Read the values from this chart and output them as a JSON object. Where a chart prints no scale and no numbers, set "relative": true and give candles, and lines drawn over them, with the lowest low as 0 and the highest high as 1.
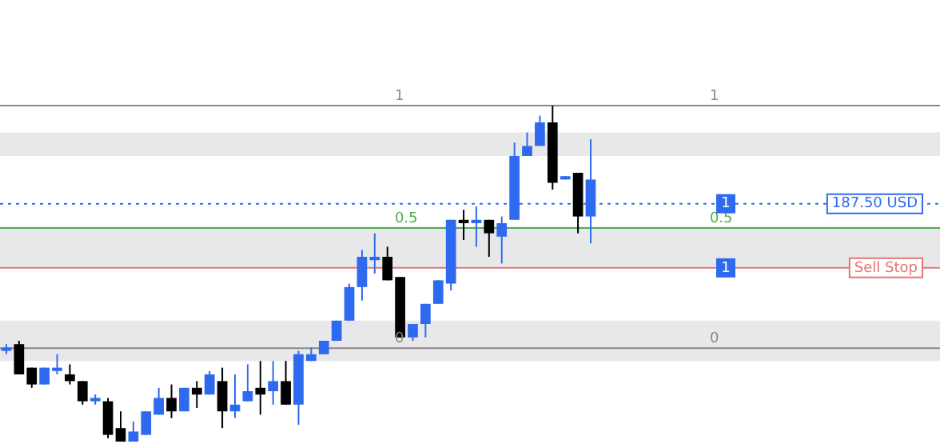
{
  "chart_data": {
    "type": "candlestick",
    "relative": true,
    "categories": [
      null,
      null,
      null,
      null,
      null,
      null,
      null,
      null,
      null,
      null,
      null,
      null,
      null,
      null,
      null,
      null,
      null,
      null,
      null,
      null,
      null,
      null,
      null,
      null,
      null,
      null,
      null,
      null,
      null,
      null,
      null,
      null,
      null,
      null,
      null,
      null,
      null,
      null,
      null,
      null,
      null,
      null,
      null,
      null,
      null,
      null,
      null,
      null,
      null,
      null,
      null,
      null,
      null,
      null,
      null,
      null,
      null,
      null,
      null,
      null,
      null,
      null,
      null,
      null,
      null,
      null,
      null,
      null,
      null,
      null,
      null,
      null,
      null,
      null
    ],
    "ohlc": [
      [
        0.27,
        0.29,
        0.26,
        0.28
      ],
      [
        0.29,
        0.3,
        0.2,
        0.2
      ],
      [
        0.22,
        0.22,
        0.16,
        0.17
      ],
      [
        0.17,
        0.22,
        0.17,
        0.22
      ],
      [
        0.21,
        0.26,
        0.2,
        0.22
      ],
      [
        0.2,
        0.23,
        0.17,
        0.18
      ],
      [
        0.18,
        0.18,
        0.11,
        0.12
      ],
      [
        0.12,
        0.14,
        0.11,
        0.13
      ],
      [
        0.12,
        0.13,
        0.01,
        0.02
      ],
      [
        0.04,
        0.09,
        0,
        0
      ],
      [
        0,
        0.06,
        0,
        0.03
      ],
      [
        0.02,
        0.09,
        0.02,
        0.09
      ],
      [
        0.08,
        0.16,
        0.08,
        0.13
      ],
      [
        0.13,
        0.17,
        0.07,
        0.09
      ],
      [
        0.09,
        0.16,
        0.09,
        0.16
      ],
      [
        0.16,
        0.18,
        0.1,
        0.14
      ],
      [
        0.14,
        0.21,
        0.14,
        0.2
      ],
      [
        0.18,
        0.22,
        0.04,
        0.09
      ],
      [
        0.09,
        0.2,
        0.07,
        0.11
      ],
      [
        0.12,
        0.23,
        0.12,
        0.15
      ],
      [
        0.16,
        0.24,
        0.08,
        0.14
      ],
      [
        0.15,
        0.24,
        0.11,
        0.18
      ],
      [
        0.18,
        0.24,
        0.11,
        0.11
      ],
      [
        0.11,
        0.27,
        0.05,
        0.26
      ],
      [
        0.24,
        0.28,
        0.24,
        0.26
      ],
      [
        0.26,
        0.3,
        0.26,
        0.3
      ],
      [
        0.3,
        0.36,
        0.3,
        0.36
      ],
      [
        0.36,
        0.47,
        0.36,
        0.46
      ],
      [
        0.46,
        0.57,
        0.42,
        0.55
      ],
      [
        0.54,
        0.62,
        0.5,
        0.55
      ],
      [
        0.55,
        0.58,
        0.48,
        0.48
      ],
      [
        0.49,
        0.49,
        0.31,
        0.31
      ],
      [
        0.31,
        0.35,
        0.3,
        0.35
      ],
      [
        0.35,
        0.41,
        0.31,
        0.41
      ],
      [
        0.41,
        0.48,
        0.41,
        0.48
      ],
      [
        0.47,
        0.66,
        0.45,
        0.66
      ],
      [
        0.66,
        0.69,
        0.6,
        0.65
      ],
      [
        0.65,
        0.7,
        0.58,
        0.66
      ],
      [
        0.66,
        0.66,
        0.55,
        0.62
      ],
      [
        0.61,
        0.67,
        0.53,
        0.65
      ],
      [
        0.66,
        0.89,
        0.66,
        0.85
      ],
      [
        0.85,
        0.92,
        0.85,
        0.88
      ],
      [
        0.88,
        0.97,
        0.88,
        0.95
      ],
      [
        0.95,
        1,
        0.75,
        0.77
      ],
      [
        0.78,
        0.79,
        0.78,
        0.79
      ],
      [
        0.8,
        0.8,
        0.62,
        0.67
      ],
      [
        0.67,
        0.9,
        0.59,
        0.78
      ],
      null,
      null,
      null,
      null,
      null,
      null,
      null,
      null,
      null,
      null,
      null,
      null,
      null,
      null,
      null,
      null,
      null,
      null,
      null,
      null,
      null,
      null,
      null,
      null,
      null,
      null,
      null
    ],
    "colors": [
      "#2e6af0",
      "#000000",
      "#000000",
      "#2e6af0",
      "#2e6af0",
      "#000000",
      "#000000",
      "#2e6af0",
      "#000000",
      "#000000",
      "#2e6af0",
      "#2e6af0",
      "#2e6af0",
      "#000000",
      "#2e6af0",
      "#000000",
      "#2e6af0",
      "#000000",
      "#2e6af0",
      "#2e6af0",
      "#000000",
      "#2e6af0",
      "#000000",
      "#2e6af0",
      "#2e6af0",
      "#2e6af0",
      "#2e6af0",
      "#2e6af0",
      "#2e6af0",
      "#2e6af0",
      "#000000",
      "#000000",
      "#2e6af0",
      "#2e6af0",
      "#2e6af0",
      "#2e6af0",
      "#000000",
      "#2e6af0",
      "#000000",
      "#2e6af0",
      "#2e6af0",
      "#2e6af0",
      "#2e6af0",
      "#000000",
      "#2e6af0",
      "#000000",
      "#2e6af0",
      null,
      null,
      null,
      null,
      null,
      null,
      null,
      null,
      null,
      null,
      null,
      null,
      null,
      null,
      null,
      null,
      null,
      null,
      null,
      null,
      null,
      null,
      null,
      null,
      null,
      null,
      null
    ],
    "bands": [
      {
        "axis": "y",
        "from": 0.24,
        "to": 0.36,
        "color": "#e8e8ea"
      },
      {
        "axis": "y",
        "from": 0.52,
        "to": 0.64,
        "color": "#e8e8ea"
      },
      {
        "axis": "y",
        "from": 0.85,
        "to": 0.92,
        "color": "#e8e8ea"
      }
    ],
    "ref_lines": [
      {
        "axis": "y",
        "value": 1,
        "color": "#888888"
      },
      {
        "axis": "y",
        "value": 0.636,
        "color": "#4caf50"
      },
      {
        "axis": "y",
        "value": 0.278,
        "color": "#888888"
      },
      {
        "axis": "y",
        "value": 0.708,
        "label": "187.50 USD",
        "color": "#2e6af0",
        "line_style": "dotted"
      },
      {
        "axis": "y",
        "value": 0.517,
        "label": "Sell Stop",
        "color": "#e57373"
      }
    ],
    "annotations": [
      "1",
      "0.5",
      "0",
      {
        "text": "1",
        "y": 0.708
      },
      {
        "text": "1",
        "y": 0.517
      }
    ],
    "legend": false,
    "grid": false
  }
}
